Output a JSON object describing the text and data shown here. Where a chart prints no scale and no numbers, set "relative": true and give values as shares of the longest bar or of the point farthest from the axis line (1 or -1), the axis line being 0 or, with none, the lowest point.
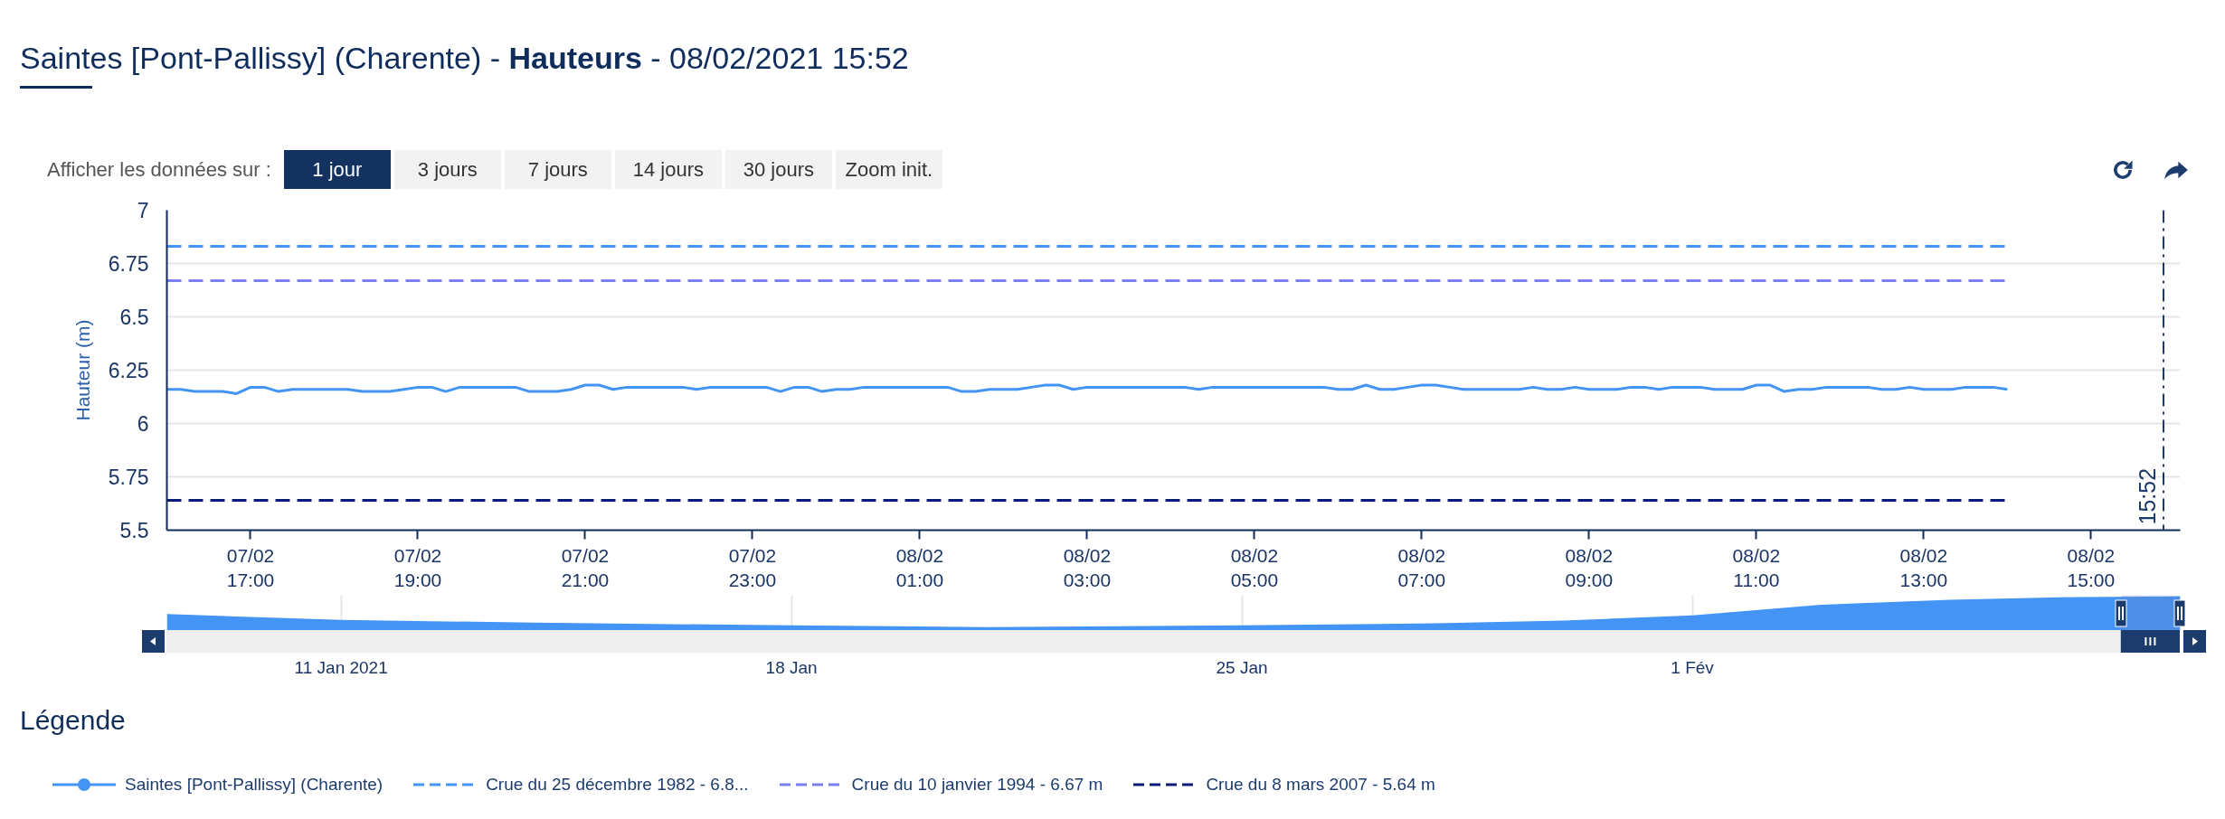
{
  "chart_data": [
    {
      "type": "line",
      "title": "Saintes [Pont-Pallissy] (Charente) - Hauteurs - 08/02/2021 15:52",
      "ylabel": "Hauteur (m)",
      "legend_title": "Légende",
      "legend": "bottom",
      "grid": "y",
      "annotations": [
        "Afficher les données sur :",
        "1 jour",
        "3 jours",
        "7 jours",
        "14 jours",
        "30 jours",
        "Zoom init."
      ],
      "xlim": [
        "2021-02-07T16:00",
        "2021-02-08T16:04"
      ],
      "xticks": [
        {
          "value": "2021-02-07T17:00",
          "label": "07/02\n17:00"
        },
        {
          "value": "2021-02-07T19:00",
          "label": "07/02\n19:00"
        },
        {
          "value": "2021-02-07T21:00",
          "label": "07/02\n21:00"
        },
        {
          "value": "2021-02-07T23:00",
          "label": "07/02\n23:00"
        },
        {
          "value": "2021-02-08T01:00",
          "label": "08/02\n01:00"
        },
        {
          "value": "2021-02-08T03:00",
          "label": "08/02\n03:00"
        },
        {
          "value": "2021-02-08T05:00",
          "label": "08/02\n05:00"
        },
        {
          "value": "2021-02-08T07:00",
          "label": "08/02\n07:00"
        },
        {
          "value": "2021-02-08T09:00",
          "label": "08/02\n09:00"
        },
        {
          "value": "2021-02-08T11:00",
          "label": "08/02\n11:00"
        },
        {
          "value": "2021-02-08T13:00",
          "label": "08/02\n13:00"
        },
        {
          "value": "2021-02-08T15:00",
          "label": "08/02\n15:00"
        }
      ],
      "ylim": [
        5.5,
        7
      ],
      "yticks": [
        5.5,
        5.75,
        6,
        6.25,
        6.5,
        6.75,
        7
      ],
      "ref_lines": [
        {
          "axis": "x",
          "value": "2021-02-08T15:52",
          "label": "15:52",
          "color": "#1b3a6b",
          "line_style": "dashdot"
        }
      ],
      "series": [
        {
          "name": "Saintes [Pont-Pallissy] (Charente)",
          "color": "#4394f5",
          "line_style": "solid",
          "x": [
            "2021-02-07T16:00",
            "2021-02-07T16:10",
            "2021-02-07T16:20",
            "2021-02-07T16:30",
            "2021-02-07T16:40",
            "2021-02-07T16:50",
            "2021-02-07T17:00",
            "2021-02-07T17:10",
            "2021-02-07T17:20",
            "2021-02-07T17:30",
            "2021-02-07T17:40",
            "2021-02-07T17:50",
            "2021-02-07T18:00",
            "2021-02-07T18:10",
            "2021-02-07T18:20",
            "2021-02-07T18:30",
            "2021-02-07T18:40",
            "2021-02-07T18:50",
            "2021-02-07T19:00",
            "2021-02-07T19:10",
            "2021-02-07T19:20",
            "2021-02-07T19:30",
            "2021-02-07T19:40",
            "2021-02-07T19:50",
            "2021-02-07T20:00",
            "2021-02-07T20:10",
            "2021-02-07T20:20",
            "2021-02-07T20:30",
            "2021-02-07T20:40",
            "2021-02-07T20:50",
            "2021-02-07T21:00",
            "2021-02-07T21:10",
            "2021-02-07T21:20",
            "2021-02-07T21:30",
            "2021-02-07T21:40",
            "2021-02-07T21:50",
            "2021-02-07T22:00",
            "2021-02-07T22:10",
            "2021-02-07T22:20",
            "2021-02-07T22:30",
            "2021-02-07T22:40",
            "2021-02-07T22:50",
            "2021-02-07T23:00",
            "2021-02-07T23:10",
            "2021-02-07T23:20",
            "2021-02-07T23:30",
            "2021-02-07T23:40",
            "2021-02-07T23:50",
            "2021-02-08T00:00",
            "2021-02-08T00:10",
            "2021-02-08T00:20",
            "2021-02-08T00:30",
            "2021-02-08T00:40",
            "2021-02-08T00:50",
            "2021-02-08T01:00",
            "2021-02-08T01:10",
            "2021-02-08T01:20",
            "2021-02-08T01:30",
            "2021-02-08T01:40",
            "2021-02-08T01:50",
            "2021-02-08T02:00",
            "2021-02-08T02:10",
            "2021-02-08T02:20",
            "2021-02-08T02:30",
            "2021-02-08T02:40",
            "2021-02-08T02:50",
            "2021-02-08T03:00",
            "2021-02-08T03:10",
            "2021-02-08T03:20",
            "2021-02-08T03:30",
            "2021-02-08T03:40",
            "2021-02-08T03:50",
            "2021-02-08T04:00",
            "2021-02-08T04:10",
            "2021-02-08T04:20",
            "2021-02-08T04:30",
            "2021-02-08T04:40",
            "2021-02-08T04:50",
            "2021-02-08T05:00",
            "2021-02-08T05:10",
            "2021-02-08T05:20",
            "2021-02-08T05:30",
            "2021-02-08T05:40",
            "2021-02-08T05:50",
            "2021-02-08T06:00",
            "2021-02-08T06:10",
            "2021-02-08T06:20",
            "2021-02-08T06:30",
            "2021-02-08T06:40",
            "2021-02-08T06:50",
            "2021-02-08T07:00",
            "2021-02-08T07:10",
            "2021-02-08T07:20",
            "2021-02-08T07:30",
            "2021-02-08T07:40",
            "2021-02-08T07:50",
            "2021-02-08T08:00",
            "2021-02-08T08:10",
            "2021-02-08T08:20",
            "2021-02-08T08:30",
            "2021-02-08T08:40",
            "2021-02-08T08:50",
            "2021-02-08T09:00",
            "2021-02-08T09:10",
            "2021-02-08T09:20",
            "2021-02-08T09:30",
            "2021-02-08T09:40",
            "2021-02-08T09:50",
            "2021-02-08T10:00",
            "2021-02-08T10:10",
            "2021-02-08T10:20",
            "2021-02-08T10:30",
            "2021-02-08T10:40",
            "2021-02-08T10:50",
            "2021-02-08T11:00",
            "2021-02-08T11:10",
            "2021-02-08T11:20",
            "2021-02-08T11:30",
            "2021-02-08T11:40",
            "2021-02-08T11:50",
            "2021-02-08T12:00",
            "2021-02-08T12:10",
            "2021-02-08T12:20",
            "2021-02-08T12:30",
            "2021-02-08T12:40",
            "2021-02-08T12:50",
            "2021-02-08T13:00",
            "2021-02-08T13:10",
            "2021-02-08T13:20",
            "2021-02-08T13:30",
            "2021-02-08T13:40",
            "2021-02-08T13:50",
            "2021-02-08T14:00"
          ],
          "values": [
            6.16,
            6.16,
            6.15,
            6.15,
            6.15,
            6.14,
            6.17,
            6.17,
            6.15,
            6.16,
            6.16,
            6.16,
            6.16,
            6.16,
            6.15,
            6.15,
            6.15,
            6.16,
            6.17,
            6.17,
            6.15,
            6.17,
            6.17,
            6.17,
            6.17,
            6.17,
            6.15,
            6.15,
            6.15,
            6.16,
            6.18,
            6.18,
            6.16,
            6.17,
            6.17,
            6.17,
            6.17,
            6.17,
            6.16,
            6.17,
            6.17,
            6.17,
            6.17,
            6.17,
            6.15,
            6.17,
            6.17,
            6.15,
            6.16,
            6.16,
            6.17,
            6.17,
            6.17,
            6.17,
            6.17,
            6.17,
            6.17,
            6.15,
            6.15,
            6.16,
            6.16,
            6.16,
            6.17,
            6.18,
            6.18,
            6.16,
            6.17,
            6.17,
            6.17,
            6.17,
            6.17,
            6.17,
            6.17,
            6.17,
            6.16,
            6.17,
            6.17,
            6.17,
            6.17,
            6.17,
            6.17,
            6.17,
            6.17,
            6.17,
            6.16,
            6.16,
            6.18,
            6.16,
            6.16,
            6.17,
            6.18,
            6.18,
            6.17,
            6.16,
            6.16,
            6.16,
            6.16,
            6.16,
            6.17,
            6.16,
            6.16,
            6.17,
            6.16,
            6.16,
            6.16,
            6.17,
            6.17,
            6.16,
            6.17,
            6.17,
            6.17,
            6.16,
            6.16,
            6.16,
            6.18,
            6.18,
            6.15,
            6.16,
            6.16,
            6.17,
            6.17,
            6.17,
            6.17,
            6.16,
            6.16,
            6.17,
            6.16,
            6.16,
            6.16,
            6.17,
            6.17,
            6.17,
            6.16
          ]
        },
        {
          "name": "Crue du 25 décembre 1982 - 6.8...",
          "color": "#4394f5",
          "line_style": "dashed",
          "x": [
            "2021-02-07T16:00",
            "2021-02-08T14:00"
          ],
          "values": [
            6.83,
            6.83
          ]
        },
        {
          "name": "Crue du 10 janvier 1994 - 6.67 m",
          "color": "#7b7ff2",
          "line_style": "dashed",
          "x": [
            "2021-02-07T16:00",
            "2021-02-08T14:00"
          ],
          "values": [
            6.67,
            6.67
          ]
        },
        {
          "name": "Crue du 8 mars 2007 - 5.64 m",
          "color": "#0c1a78",
          "line_style": "dashed",
          "x": [
            "2021-02-07T16:00",
            "2021-02-08T14:00"
          ],
          "values": [
            5.64,
            5.64
          ]
        }
      ]
    },
    {
      "type": "area",
      "relative": true,
      "color": "#4394f5",
      "grid": "x",
      "tick_labels": "x",
      "xlim": [
        "2021-01-08T07:00",
        "2021-02-08T14:00"
      ],
      "xticks": [
        {
          "value": "2021-01-11",
          "label": "11 Jan 2021"
        },
        {
          "value": "2021-01-18",
          "label": "18 Jan"
        },
        {
          "value": "2021-01-25",
          "label": "25 Jan"
        },
        {
          "value": "2021-02-01",
          "label": "1 Fév"
        }
      ],
      "bands": [
        {
          "axis": "x",
          "from": "2021-02-07T16:00",
          "to": "2021-02-08T14:00",
          "color": "#6685c2"
        }
      ],
      "x": [
        "2021-01-08T07:00",
        "2021-01-11",
        "2021-01-14",
        "2021-01-18",
        "2021-01-21",
        "2021-01-25",
        "2021-01-28",
        "2021-01-30",
        "2021-02-01",
        "2021-02-03",
        "2021-02-05",
        "2021-02-07",
        "2021-02-08T14:00"
      ],
      "values": [
        0.48,
        0.31,
        0.23,
        0.15,
        0.1,
        0.15,
        0.21,
        0.29,
        0.44,
        0.75,
        0.9,
        0.98,
        1
      ]
    }
  ]
}
